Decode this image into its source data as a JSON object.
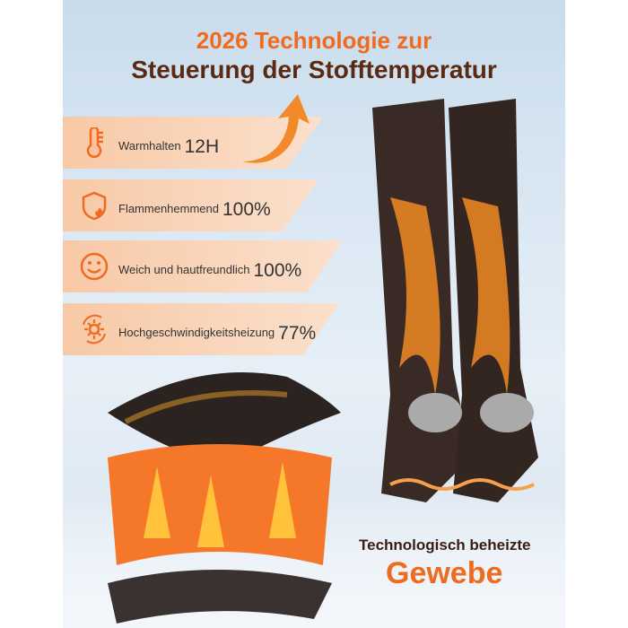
{
  "headline": {
    "line1": "2026 Technologie zur",
    "line2": "Steuerung der Stofftemperatur"
  },
  "features": [
    {
      "icon": "thermometer-icon",
      "label": "Warmhalten",
      "value": "12H"
    },
    {
      "icon": "shield-flame-icon",
      "label": "Flammenhemmend",
      "value": "100%"
    },
    {
      "icon": "smiley-icon",
      "label": "Weich und hautfreundlich",
      "value": "100%"
    },
    {
      "icon": "sun-cycle-icon",
      "label": "Hochgeschwindigkeitsheizung",
      "value": "77%"
    }
  ],
  "caption": {
    "line1": "Technologisch beheizte",
    "line2": "Gewebe"
  },
  "colors": {
    "accent": "#f06b1f",
    "dark": "#5b2a12"
  }
}
